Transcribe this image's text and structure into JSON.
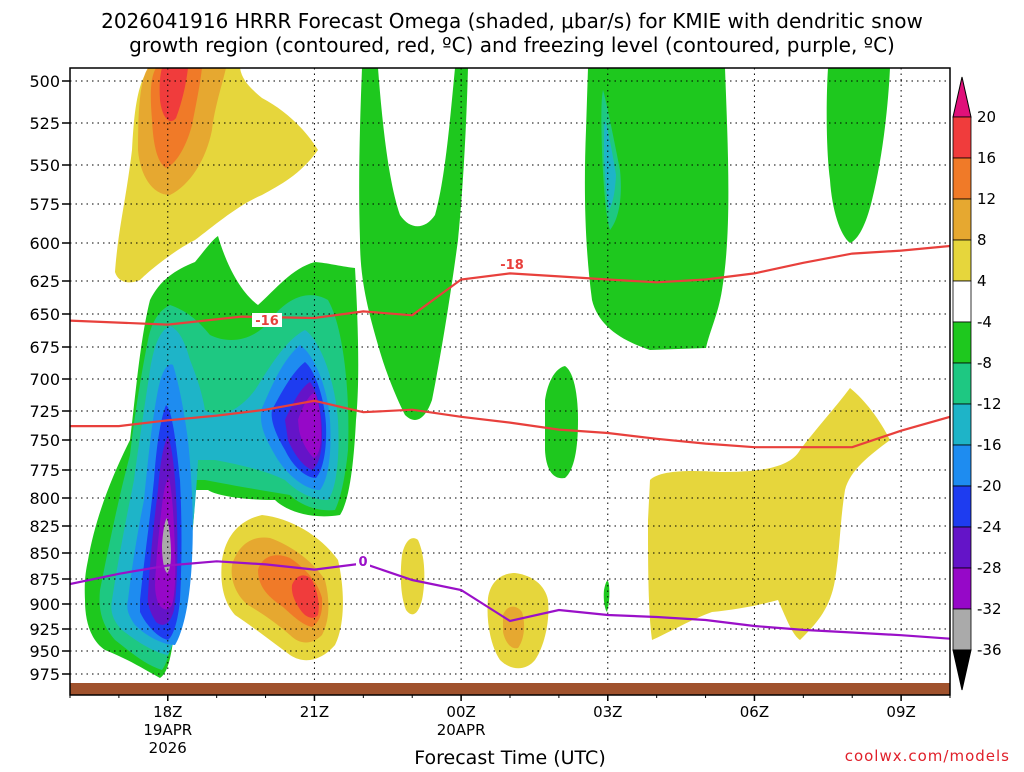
{
  "chart_data": {
    "type": "time-height contour",
    "title_line1": "2026041916 HRRR Forecast Omega (shaded, μbar/s) for KMIE with dendritic snow",
    "title_line2": "growth region (contoured, red, ºC) and freezing level (contoured, purple, ºC)",
    "xlabel": "Forecast Time (UTC)",
    "credit": "coolwx.com/models",
    "pressure_levels": [
      "500",
      "525",
      "550",
      "575",
      "600",
      "625",
      "650",
      "675",
      "700",
      "725",
      "750",
      "775",
      "800",
      "825",
      "850",
      "875",
      "900",
      "925",
      "950",
      "975"
    ],
    "time_ticks": [
      {
        "label": "18Z",
        "date": "19APR",
        "year": "2026",
        "hour": 2
      },
      {
        "label": "21Z",
        "date": "",
        "year": "",
        "hour": 5
      },
      {
        "label": "00Z",
        "date": "20APR",
        "year": "",
        "hour": 8
      },
      {
        "label": "03Z",
        "date": "",
        "year": "",
        "hour": 11
      },
      {
        "label": "06Z",
        "date": "",
        "year": "",
        "hour": 14
      },
      {
        "label": "09Z",
        "date": "",
        "year": "",
        "hour": 17
      }
    ],
    "x_range_hours": [
      0,
      18
    ],
    "colorbar": {
      "labels": [
        "20",
        "16",
        "12",
        "8",
        "4",
        "-4",
        "-8",
        "-12",
        "-16",
        "-20",
        "-24",
        "-28",
        "-32",
        "-36"
      ],
      "colors": {
        "gt20": "#e0107a",
        "16_20": "#f03c3c",
        "12_16": "#f07a28",
        "8_12": "#e6a830",
        "4_8": "#e6d63c",
        "neutral": "#ffffff",
        "n4_n8": "#1ec81e",
        "n8_n12": "#1ec882",
        "n12_n16": "#1eb4c8",
        "n16_n20": "#1e8cf0",
        "n20_n24": "#1e3cf0",
        "n24_n28": "#6414c8",
        "n28_n32": "#9608c8",
        "n32_n36": "#aaaaaa",
        "lt36": "#000000"
      }
    },
    "contours": {
      "dgz_color": "#e8403c",
      "freezing_color": "#9a10c8",
      "dgz_upper": {
        "label": "-18",
        "points": [
          [
            0,
            655
          ],
          [
            2,
            658
          ],
          [
            3.5,
            652
          ],
          [
            5,
            653
          ],
          [
            6,
            648
          ],
          [
            7,
            651
          ],
          [
            8,
            624
          ],
          [
            9,
            620
          ],
          [
            10,
            622
          ],
          [
            11,
            624
          ],
          [
            12,
            626
          ],
          [
            13,
            624
          ],
          [
            14,
            620
          ],
          [
            15,
            613
          ],
          [
            16,
            607
          ],
          [
            17,
            605
          ],
          [
            18,
            602
          ]
        ]
      },
      "dgz_upper_label2": "-16",
      "dgz_lower": {
        "points": [
          [
            0,
            738
          ],
          [
            1,
            738
          ],
          [
            2,
            733
          ],
          [
            3,
            729
          ],
          [
            4,
            724
          ],
          [
            5,
            717
          ],
          [
            6,
            726
          ],
          [
            7,
            724
          ],
          [
            8,
            730
          ],
          [
            9,
            735
          ],
          [
            10,
            741
          ],
          [
            11,
            744
          ],
          [
            12,
            749
          ],
          [
            13,
            753
          ],
          [
            14,
            756
          ],
          [
            15,
            756
          ],
          [
            16,
            756
          ],
          [
            17,
            742
          ],
          [
            18,
            730
          ]
        ]
      },
      "freezing": {
        "label": "0",
        "points": [
          [
            0,
            880
          ],
          [
            1,
            870
          ],
          [
            2,
            862
          ],
          [
            3,
            858
          ],
          [
            4,
            861
          ],
          [
            5,
            866
          ],
          [
            6,
            860
          ],
          [
            7,
            876
          ],
          [
            8,
            886
          ],
          [
            9,
            917
          ],
          [
            10,
            906
          ],
          [
            11,
            911
          ],
          [
            12,
            913
          ],
          [
            13,
            916
          ],
          [
            14,
            922
          ],
          [
            15,
            926
          ],
          [
            16,
            929
          ],
          [
            17,
            932
          ],
          [
            18,
            936
          ]
        ]
      }
    }
  }
}
